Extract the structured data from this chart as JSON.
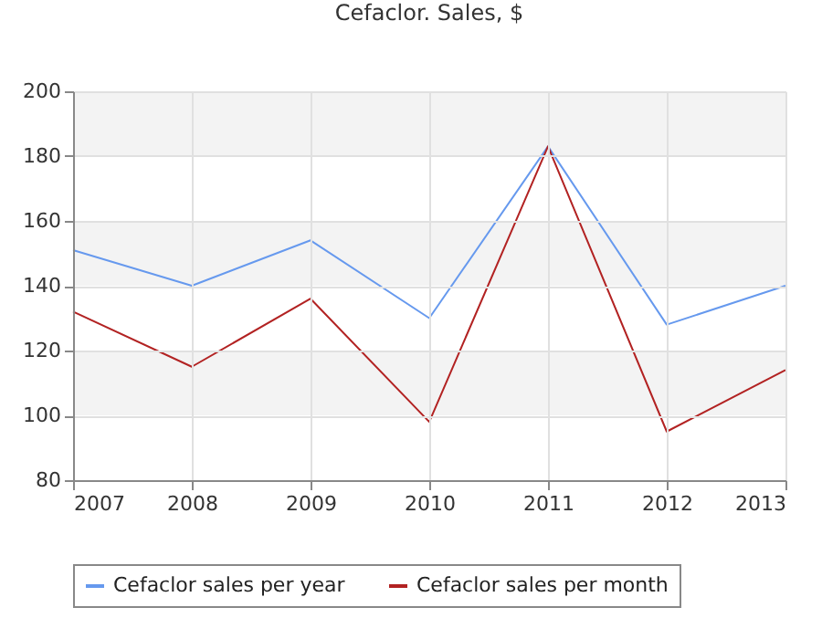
{
  "chart_data": {
    "type": "line",
    "title": "Cefaclor. Sales, $",
    "x": [
      2007,
      2008,
      2009,
      2010,
      2011,
      2012,
      2013
    ],
    "series": [
      {
        "name": "Cefaclor sales per year",
        "color": "#6699ee",
        "values": [
          151,
          140,
          154,
          130,
          183,
          128,
          140
        ]
      },
      {
        "name": "Cefaclor sales per month",
        "color": "#b22222",
        "values": [
          132,
          115,
          136,
          98,
          183,
          95,
          114
        ]
      }
    ],
    "xlim": [
      2007,
      2013
    ],
    "xticks": [
      2007,
      2008,
      2009,
      2010,
      2011,
      2012,
      2013
    ],
    "ylim": [
      80,
      200
    ],
    "yticks": [
      80,
      100,
      120,
      140,
      160,
      180,
      200
    ],
    "bands": [
      {
        "axis": "y",
        "from": 100,
        "to": 120,
        "color": "#f3f3f3"
      },
      {
        "axis": "y",
        "from": 140,
        "to": 160,
        "color": "#f3f3f3"
      },
      {
        "axis": "y",
        "from": 180,
        "to": 200,
        "color": "#f3f3f3"
      }
    ],
    "grid": true,
    "legend": "bottom"
  }
}
